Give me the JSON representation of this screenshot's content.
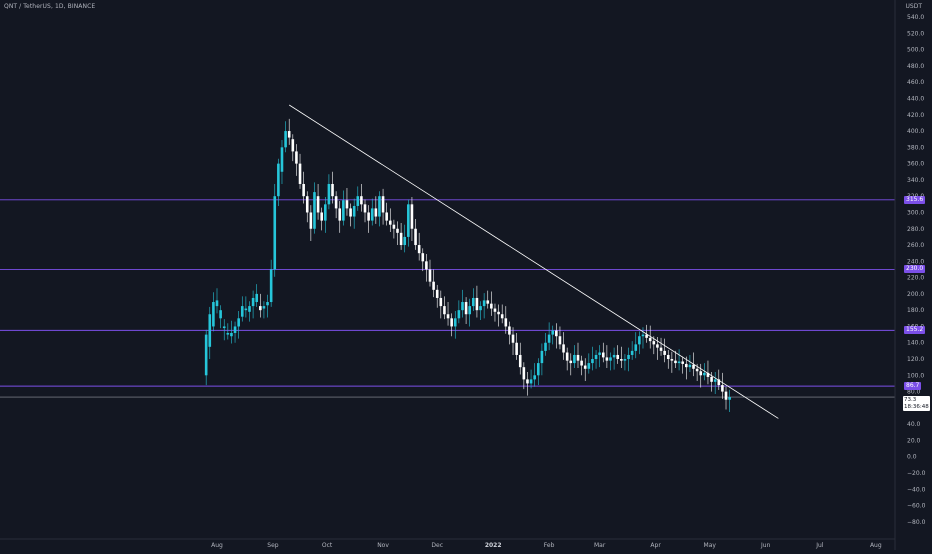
{
  "header": {
    "symbol_info": "QNT / TetherUS, 1D, BINANCE",
    "currency": "USDT"
  },
  "colors": {
    "background": "#131722",
    "up": "#26c6da",
    "down": "#ffffff",
    "level_line": "#7b4fe8",
    "level_tag": "#7b4fe8",
    "trendline": "#ffffff",
    "axis_text": "#b2b5be"
  },
  "chart_data": {
    "type": "candlestick",
    "title": "QNT / TetherUS, 1D, BINANCE",
    "ylabel": "USDT",
    "ylim": [
      -90,
      545
    ],
    "y_ticks": [
      540.0,
      520.0,
      500.0,
      480.0,
      460.0,
      440.0,
      420.0,
      400.0,
      380.0,
      360.0,
      340.0,
      320.0,
      300.0,
      280.0,
      260.0,
      240.0,
      220.0,
      200.0,
      180.0,
      160.0,
      140.0,
      120.0,
      100.0,
      80.0,
      60.0,
      40.0,
      20.0,
      0.0,
      -20.0,
      -40.0,
      -60.0,
      -80.0
    ],
    "y_tick_labels": [
      "540.0",
      "520.0",
      "500.0",
      "480.0",
      "460.0",
      "440.0",
      "420.0",
      "400.0",
      "380.0",
      "360.0",
      "340.0",
      "320.0",
      "300.0",
      "280.0",
      "260.0",
      "240.0",
      "220.0",
      "200.0",
      "180.0",
      "160.0",
      "140.0",
      "120.0",
      "100.0",
      "80.0",
      "60.0",
      "40.0",
      "20.0",
      "0.0",
      "−20.0",
      "−40.0",
      "−60.0",
      "−80.0"
    ],
    "x_ticks": [
      "Aug",
      "Sep",
      "Oct",
      "Nov",
      "Dec",
      "2022",
      "Feb",
      "Mar",
      "Apr",
      "May",
      "Jun",
      "Jul",
      "Aug"
    ],
    "x_tick_dates": [
      "2021-08-01",
      "2021-09-01",
      "2021-10-01",
      "2021-11-01",
      "2021-12-01",
      "2022-01-01",
      "2022-02-01",
      "2022-03-01",
      "2022-04-01",
      "2022-05-01",
      "2022-06-01",
      "2022-07-01",
      "2022-08-01"
    ],
    "horizontal_levels": [
      {
        "value": 315.6,
        "label": "315.6"
      },
      {
        "value": 230.0,
        "label": "230.0"
      },
      {
        "value": 155.2,
        "label": "155.2"
      },
      {
        "value": 86.7,
        "label": "86.7"
      }
    ],
    "current_price": {
      "value": 73.3,
      "label": "73.3",
      "countdown": "18:36:48"
    },
    "trendline": {
      "start": {
        "date": "2021-09-10",
        "value": 432
      },
      "end": {
        "date": "2022-06-08",
        "value": 47
      }
    },
    "series": [
      {
        "values": [
          [
            "2021-07-26",
            100,
            150
          ],
          [
            "2021-07-28",
            135,
            175
          ],
          [
            "2021-07-30",
            160,
            190
          ],
          [
            "2021-08-01",
            185,
            192
          ],
          [
            "2021-08-03",
            170,
            180
          ],
          [
            "2021-08-05",
            158,
            160
          ],
          [
            "2021-08-07",
            150,
            152
          ],
          [
            "2021-08-09",
            148,
            152
          ],
          [
            "2021-08-11",
            152,
            160
          ],
          [
            "2021-08-13",
            160,
            170
          ],
          [
            "2021-08-15",
            172,
            185
          ],
          [
            "2021-08-17",
            180,
            182
          ],
          [
            "2021-08-19",
            178,
            185
          ],
          [
            "2021-08-21",
            185,
            195
          ],
          [
            "2021-08-23",
            190,
            200
          ],
          [
            "2021-08-25",
            185,
            180
          ],
          [
            "2021-08-27",
            182,
            185
          ],
          [
            "2021-08-29",
            186,
            190
          ],
          [
            "2021-08-31",
            190,
            230
          ],
          [
            "2021-09-02",
            230,
            320
          ],
          [
            "2021-09-04",
            320,
            360
          ],
          [
            "2021-09-06",
            350,
            380
          ],
          [
            "2021-09-08",
            380,
            400
          ],
          [
            "2021-09-10",
            400,
            392
          ],
          [
            "2021-09-12",
            390,
            375
          ],
          [
            "2021-09-14",
            375,
            360
          ],
          [
            "2021-09-16",
            360,
            335
          ],
          [
            "2021-09-18",
            335,
            320
          ],
          [
            "2021-09-20",
            320,
            300
          ],
          [
            "2021-09-22",
            300,
            280
          ],
          [
            "2021-09-24",
            280,
            325
          ],
          [
            "2021-09-26",
            320,
            300
          ],
          [
            "2021-09-28",
            300,
            290
          ],
          [
            "2021-09-30",
            290,
            310
          ],
          [
            "2021-10-02",
            310,
            335
          ],
          [
            "2021-10-04",
            335,
            320
          ],
          [
            "2021-10-06",
            320,
            305
          ],
          [
            "2021-10-08",
            305,
            290
          ],
          [
            "2021-10-10",
            290,
            315
          ],
          [
            "2021-10-12",
            315,
            305
          ],
          [
            "2021-10-14",
            305,
            295
          ],
          [
            "2021-10-16",
            295,
            308
          ],
          [
            "2021-10-18",
            308,
            320
          ],
          [
            "2021-10-20",
            320,
            310
          ],
          [
            "2021-10-22",
            310,
            300
          ],
          [
            "2021-10-24",
            300,
            290
          ],
          [
            "2021-10-26",
            290,
            305
          ],
          [
            "2021-10-28",
            305,
            295
          ],
          [
            "2021-10-30",
            295,
            320
          ],
          [
            "2021-11-01",
            320,
            300
          ],
          [
            "2021-11-03",
            300,
            290
          ],
          [
            "2021-11-05",
            290,
            285
          ],
          [
            "2021-11-07",
            285,
            280
          ],
          [
            "2021-11-09",
            280,
            275
          ],
          [
            "2021-11-11",
            275,
            260
          ],
          [
            "2021-11-13",
            260,
            270
          ],
          [
            "2021-11-15",
            270,
            310
          ],
          [
            "2021-11-17",
            310,
            280
          ],
          [
            "2021-11-19",
            280,
            260
          ],
          [
            "2021-11-21",
            260,
            250
          ],
          [
            "2021-11-23",
            250,
            240
          ],
          [
            "2021-11-25",
            240,
            230
          ],
          [
            "2021-11-27",
            230,
            215
          ],
          [
            "2021-11-29",
            215,
            205
          ],
          [
            "2021-12-01",
            205,
            195
          ],
          [
            "2021-12-03",
            195,
            185
          ],
          [
            "2021-12-05",
            185,
            175
          ],
          [
            "2021-12-07",
            175,
            170
          ],
          [
            "2021-12-09",
            170,
            160
          ],
          [
            "2021-12-11",
            160,
            170
          ],
          [
            "2021-12-13",
            170,
            180
          ],
          [
            "2021-12-15",
            180,
            190
          ],
          [
            "2021-12-17",
            190,
            175
          ],
          [
            "2021-12-19",
            175,
            185
          ],
          [
            "2021-12-21",
            185,
            195
          ],
          [
            "2021-12-23",
            195,
            180
          ],
          [
            "2021-12-25",
            180,
            185
          ],
          [
            "2021-12-27",
            185,
            192
          ],
          [
            "2021-12-29",
            192,
            188
          ],
          [
            "2021-12-31",
            188,
            182
          ],
          [
            "2022-01-02",
            182,
            178
          ],
          [
            "2022-01-04",
            178,
            175
          ],
          [
            "2022-01-06",
            175,
            170
          ],
          [
            "2022-01-08",
            170,
            160
          ],
          [
            "2022-01-10",
            160,
            150
          ],
          [
            "2022-01-12",
            150,
            140
          ],
          [
            "2022-01-14",
            140,
            125
          ],
          [
            "2022-01-16",
            125,
            110
          ],
          [
            "2022-01-18",
            110,
            95
          ],
          [
            "2022-01-20",
            95,
            90
          ],
          [
            "2022-01-22",
            90,
            95
          ],
          [
            "2022-01-24",
            95,
            100
          ],
          [
            "2022-01-26",
            100,
            115
          ],
          [
            "2022-01-28",
            115,
            130
          ],
          [
            "2022-01-30",
            130,
            140
          ],
          [
            "2022-02-01",
            140,
            150
          ],
          [
            "2022-02-03",
            150,
            155
          ],
          [
            "2022-02-05",
            155,
            148
          ],
          [
            "2022-02-07",
            148,
            138
          ],
          [
            "2022-02-09",
            138,
            128
          ],
          [
            "2022-02-11",
            128,
            118
          ],
          [
            "2022-02-13",
            118,
            115
          ],
          [
            "2022-02-15",
            115,
            125
          ],
          [
            "2022-02-17",
            125,
            118
          ],
          [
            "2022-02-19",
            118,
            112
          ],
          [
            "2022-02-21",
            112,
            108
          ],
          [
            "2022-02-23",
            108,
            115
          ],
          [
            "2022-02-25",
            115,
            120
          ],
          [
            "2022-02-27",
            120,
            125
          ],
          [
            "2022-03-01",
            125,
            128
          ],
          [
            "2022-03-03",
            128,
            122
          ],
          [
            "2022-03-05",
            122,
            118
          ],
          [
            "2022-03-07",
            118,
            122
          ],
          [
            "2022-03-09",
            122,
            125
          ],
          [
            "2022-03-11",
            125,
            120
          ],
          [
            "2022-03-13",
            120,
            118
          ],
          [
            "2022-03-15",
            118,
            120
          ],
          [
            "2022-03-17",
            120,
            125
          ],
          [
            "2022-03-19",
            125,
            130
          ],
          [
            "2022-03-21",
            130,
            138
          ],
          [
            "2022-03-23",
            138,
            148
          ],
          [
            "2022-03-25",
            148,
            150
          ],
          [
            "2022-03-27",
            150,
            146
          ],
          [
            "2022-03-29",
            146,
            142
          ],
          [
            "2022-03-31",
            142,
            138
          ],
          [
            "2022-04-02",
            138,
            134
          ],
          [
            "2022-04-04",
            134,
            130
          ],
          [
            "2022-04-06",
            130,
            125
          ],
          [
            "2022-04-08",
            125,
            120
          ],
          [
            "2022-04-10",
            120,
            118
          ],
          [
            "2022-04-12",
            118,
            115
          ],
          [
            "2022-04-14",
            115,
            117
          ],
          [
            "2022-04-16",
            117,
            114
          ],
          [
            "2022-04-18",
            114,
            110
          ],
          [
            "2022-04-20",
            110,
            113
          ],
          [
            "2022-04-22",
            113,
            108
          ],
          [
            "2022-04-24",
            108,
            105
          ],
          [
            "2022-04-26",
            105,
            100
          ],
          [
            "2022-04-28",
            100,
            103
          ],
          [
            "2022-04-30",
            103,
            98
          ],
          [
            "2022-05-02",
            98,
            92
          ],
          [
            "2022-05-04",
            92,
            95
          ],
          [
            "2022-05-06",
            95,
            88
          ],
          [
            "2022-05-08",
            88,
            80
          ],
          [
            "2022-05-10",
            80,
            70
          ],
          [
            "2022-05-12",
            70,
            73.3
          ]
        ]
      }
    ]
  }
}
